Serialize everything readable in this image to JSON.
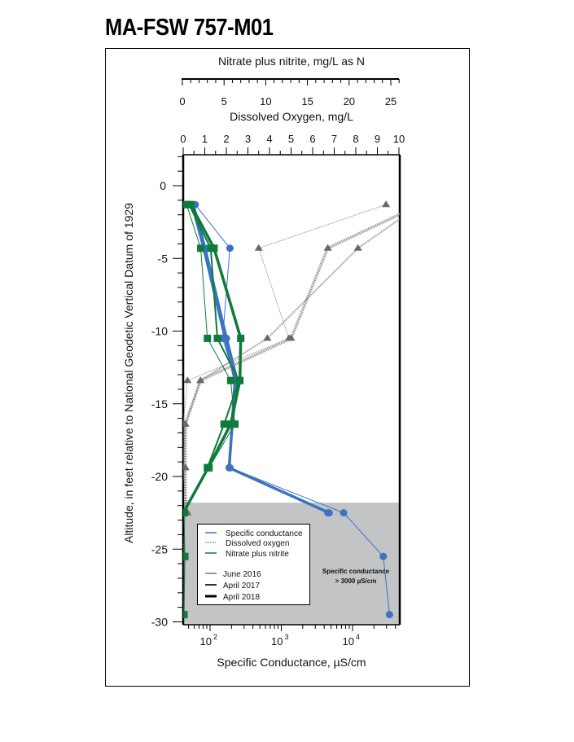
{
  "title": "MA-FSW  757-M01",
  "chart_data": {
    "type": "line",
    "title": "MA-FSW  757-M01",
    "ylabel": "Altitude, in feet relative to National Geodetic Vertical Datum of 1929",
    "ylim": [
      -30,
      2
    ],
    "yticks": [
      0,
      -5,
      -10,
      -15,
      -20,
      -25,
      -30
    ],
    "axes": {
      "nitrate": {
        "label": "Nitrate plus nitrite, mg/L as N",
        "range": [
          0,
          26
        ],
        "ticks": [
          0,
          5,
          10,
          15,
          20,
          25
        ]
      },
      "do": {
        "label": "Dissolved Oxygen, mg/L",
        "range": [
          0,
          10
        ],
        "ticks": [
          0,
          1,
          2,
          3,
          4,
          5,
          6,
          7,
          8,
          9,
          10
        ]
      },
      "sc": {
        "label": "Specific Conductance, µS/cm",
        "scale": "log",
        "ticks": [
          "10 2",
          "10 3",
          "10 4"
        ]
      }
    },
    "shaded_region": {
      "from_altitude": -21.8,
      "to_altitude": -30,
      "annotation": "Specific conductance > 3000 µS/cm"
    },
    "series": [
      {
        "name": "Specific conductance",
        "survey": "June 2016",
        "axis": "sc",
        "altitude": [
          -1.3,
          -4.3,
          -10.5,
          -13.4,
          -16.4,
          -19.4,
          -22.5,
          -25.5,
          -29.5
        ],
        "values": [
          62,
          190,
          150,
          230,
          200,
          190,
          7500,
          27000,
          33000
        ]
      },
      {
        "name": "Specific conductance",
        "survey": "April 2017",
        "axis": "sc",
        "altitude": [
          -1.3,
          -4.3,
          -10.5,
          -13.4,
          -16.4,
          -19.4,
          -22.5
        ],
        "values": [
          55,
          80,
          160,
          220,
          200,
          190,
          4500
        ]
      },
      {
        "name": "Specific conductance",
        "survey": "April 2018",
        "axis": "sc",
        "altitude": [
          -1.3,
          -4.3,
          -10.5,
          -13.4,
          -16.4,
          -19.4,
          -22.5
        ],
        "values": [
          58,
          85,
          170,
          240,
          205,
          185,
          4700
        ]
      },
      {
        "name": "Dissolved oxygen",
        "survey": "June 2016",
        "axis": "do",
        "altitude": [
          -1.3,
          -4.3,
          -10.5,
          -13.4,
          -16.4,
          -19.4,
          -22.5,
          -25.5,
          -29.5
        ],
        "values": [
          9.4,
          3.5,
          4.9,
          0.2,
          0.0,
          0.1,
          0.1,
          0.0,
          0.0
        ]
      },
      {
        "name": "Dissolved oxygen",
        "survey": "April 2017",
        "axis": "do",
        "altitude": [
          -1.3,
          -4.3,
          -10.5,
          -13.4,
          -16.4,
          -19.4,
          -22.5
        ],
        "values": [
          11,
          8.1,
          3.9,
          0.8,
          0.1,
          0.0,
          0.2
        ]
      },
      {
        "name": "Dissolved oxygen",
        "survey": "April 2018",
        "axis": "do",
        "altitude": [
          -1.3,
          -4.3,
          -10.5,
          -13.4,
          -16.4,
          -19.4,
          -22.5
        ],
        "values": [
          11,
          6.7,
          5.0,
          0.8,
          0.1,
          0.1,
          0.1
        ]
      },
      {
        "name": "Nitrate plus nitrite",
        "survey": "June 2016",
        "axis": "nitrate",
        "altitude": [
          -1.3,
          -4.3,
          -10.5,
          -13.4,
          -16.4,
          -19.4,
          -22.5,
          -25.5,
          -29.5
        ],
        "values": [
          0.5,
          2.2,
          3.0,
          5.8,
          6.3,
          3.2,
          0.2,
          0.3,
          0.2
        ]
      },
      {
        "name": "Nitrate plus nitrite",
        "survey": "April 2017",
        "axis": "nitrate",
        "altitude": [
          -1.3,
          -4.3,
          -10.5,
          -13.4,
          -16.4,
          -19.4,
          -22.5
        ],
        "values": [
          0.8,
          3.4,
          4.2,
          6.8,
          5.0,
          3.0,
          0.2
        ]
      },
      {
        "name": "Nitrate plus nitrite",
        "survey": "April 2018",
        "axis": "nitrate",
        "altitude": [
          -1.3,
          -4.3,
          -10.5,
          -13.4,
          -16.4,
          -19.4,
          -22.5
        ],
        "values": [
          1.0,
          3.8,
          7.0,
          6.9,
          5.8,
          3.1,
          0.1
        ]
      }
    ],
    "legend": {
      "items": [
        "Specific conductance",
        "Dissolved oxygen",
        "Nitrate plus nitrite",
        "June 2016",
        "April 2017",
        "April 2018"
      ],
      "position": "lower-left inside plot"
    },
    "colors": {
      "sc": "#3b73c0",
      "do": "#8a8580",
      "do_marker": "#6b6760",
      "nitrate": "#0f7a3a",
      "shade": "#c3c4c6"
    }
  },
  "labels": {
    "nitrate_axis": "Nitrate plus nitrite, mg/L as N",
    "do_axis": "Dissolved Oxygen, mg/L",
    "y_axis": "Altitude, in feet relative to National Geodetic Vertical Datum of 1929",
    "x_axis": "Specific Conductance, µS/cm",
    "annotation_1": "Specific conductance",
    "annotation_2": "> 3000 µS/cm",
    "legend": [
      "Specific conductance",
      "Dissolved oxygen",
      "Nitrate plus nitrite",
      "June 2016",
      "April 2017",
      "April 2018"
    ]
  }
}
